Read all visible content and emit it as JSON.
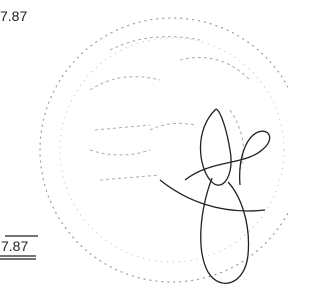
{
  "amounts": [
    "7.87",
    "7.87"
  ]
}
